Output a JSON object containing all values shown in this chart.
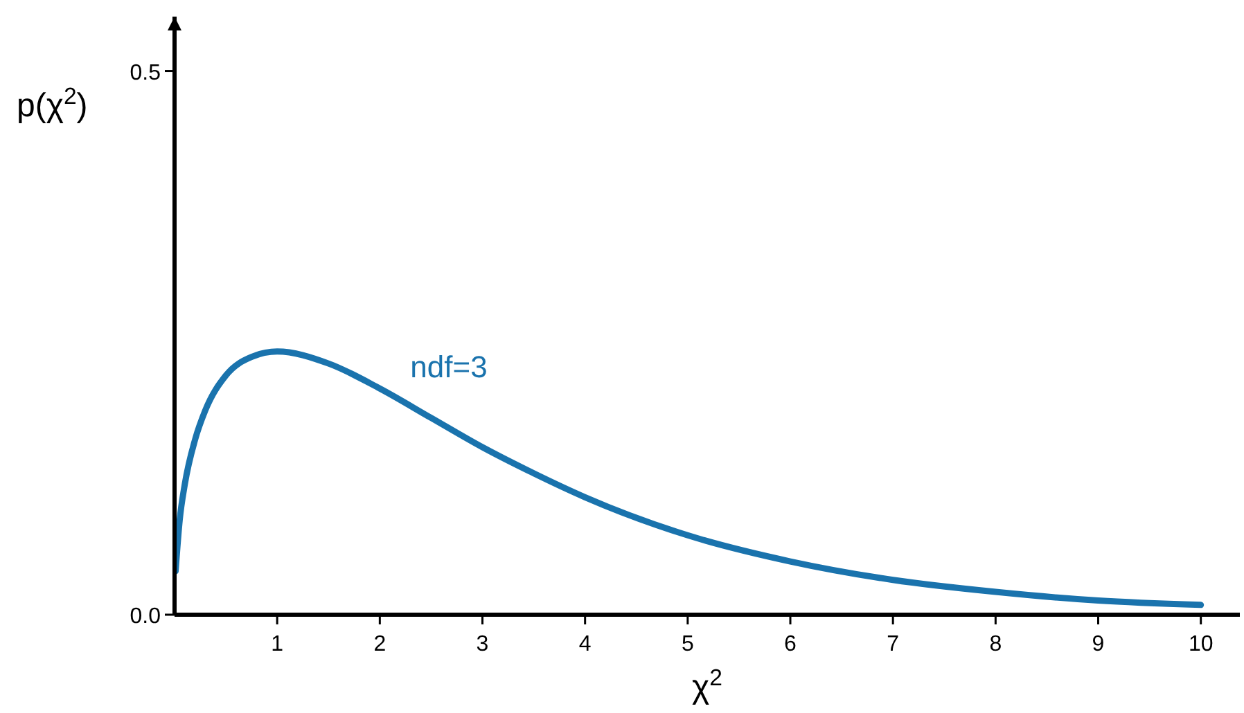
{
  "chart_data": {
    "type": "line",
    "xlabel": "χ$^{2}$",
    "ylabel": "p(χ$^{2}$)",
    "xlim": [
      0,
      10.38
    ],
    "ylim": [
      0,
      0.55
    ],
    "xticks": [
      1,
      2,
      3,
      4,
      5,
      6,
      7,
      8,
      9,
      10
    ],
    "yticks": [
      {
        "value": 0,
        "label": "0.0"
      },
      {
        "value": 0.5,
        "label": "0.5"
      }
    ],
    "x": [
      0.01,
      0.05,
      0.1,
      0.2,
      0.3,
      0.5,
      0.75,
      1,
      1.5,
      2,
      2.5,
      3,
      3.5,
      4,
      5,
      6,
      7,
      8,
      9,
      10
    ],
    "series": [
      {
        "name": "ndf=3",
        "color": "#1a73ad",
        "values": [
          0.04,
          0.087,
          0.12,
          0.161,
          0.188,
          0.22,
          0.237,
          0.242,
          0.231,
          0.208,
          0.181,
          0.154,
          0.13,
          0.108,
          0.073,
          0.049,
          0.032,
          0.021,
          0.013,
          0.009
        ]
      }
    ],
    "grid": false,
    "marker": "none",
    "line_style": "solid"
  }
}
